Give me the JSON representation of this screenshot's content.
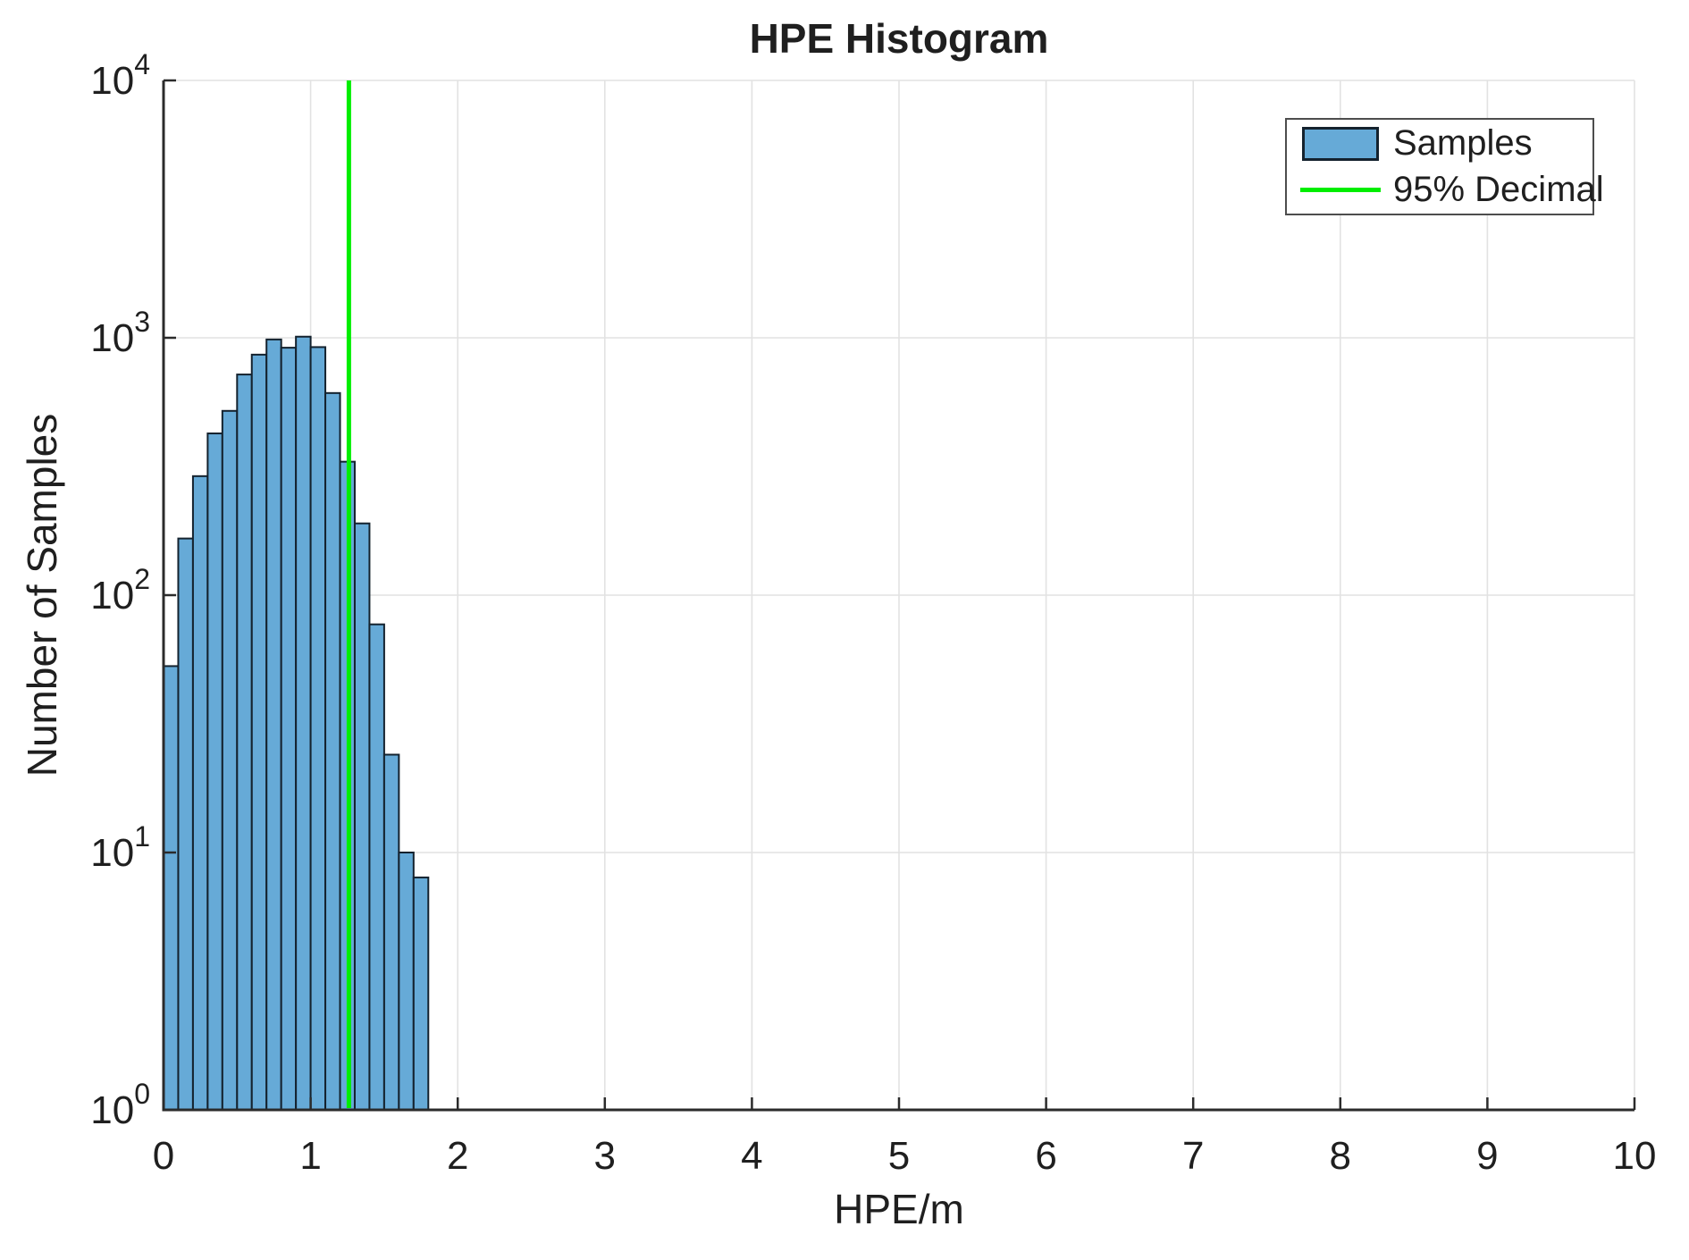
{
  "title": "HPE Histogram",
  "axes": {
    "xlabel": "HPE/m",
    "ylabel": "Number of Samples",
    "x_ticks": [
      0,
      1,
      2,
      3,
      4,
      5,
      6,
      7,
      8,
      9,
      10
    ],
    "y_tick_base": "10",
    "y_tick_exponents": [
      0,
      1,
      2,
      3,
      4
    ]
  },
  "legend": {
    "items": [
      {
        "label": "Samples",
        "swatch": "patch"
      },
      {
        "label": "95% Decimal",
        "swatch": "line"
      }
    ]
  },
  "colors": {
    "bar_fill": "#66AAD7",
    "bar_edge": "#14222E",
    "decile_line": "#00EE00",
    "grid": "#E2E2E2",
    "axis": "#2b2b2b",
    "text": "#1f1f1f"
  },
  "chart_data": {
    "type": "bar",
    "subtype": "histogram",
    "title": "HPE Histogram",
    "xlabel": "HPE/m",
    "ylabel": "Number of Samples",
    "x_range": [
      0,
      10
    ],
    "y_scale": "log10",
    "y_range": [
      1,
      10000
    ],
    "grid": true,
    "legend_position": "northeast",
    "bin_start": 0.0,
    "bin_width": 0.1,
    "bin_counts": [
      53,
      166,
      290,
      425,
      520,
      720,
      860,
      985,
      915,
      1010,
      920,
      610,
      330,
      190,
      77,
      24,
      10,
      8
    ],
    "series": [
      {
        "name": "Samples",
        "type": "histogram"
      },
      {
        "name": "95% Decimal",
        "type": "vline",
        "x": 1.26
      }
    ],
    "decile_line_x": 1.26
  }
}
